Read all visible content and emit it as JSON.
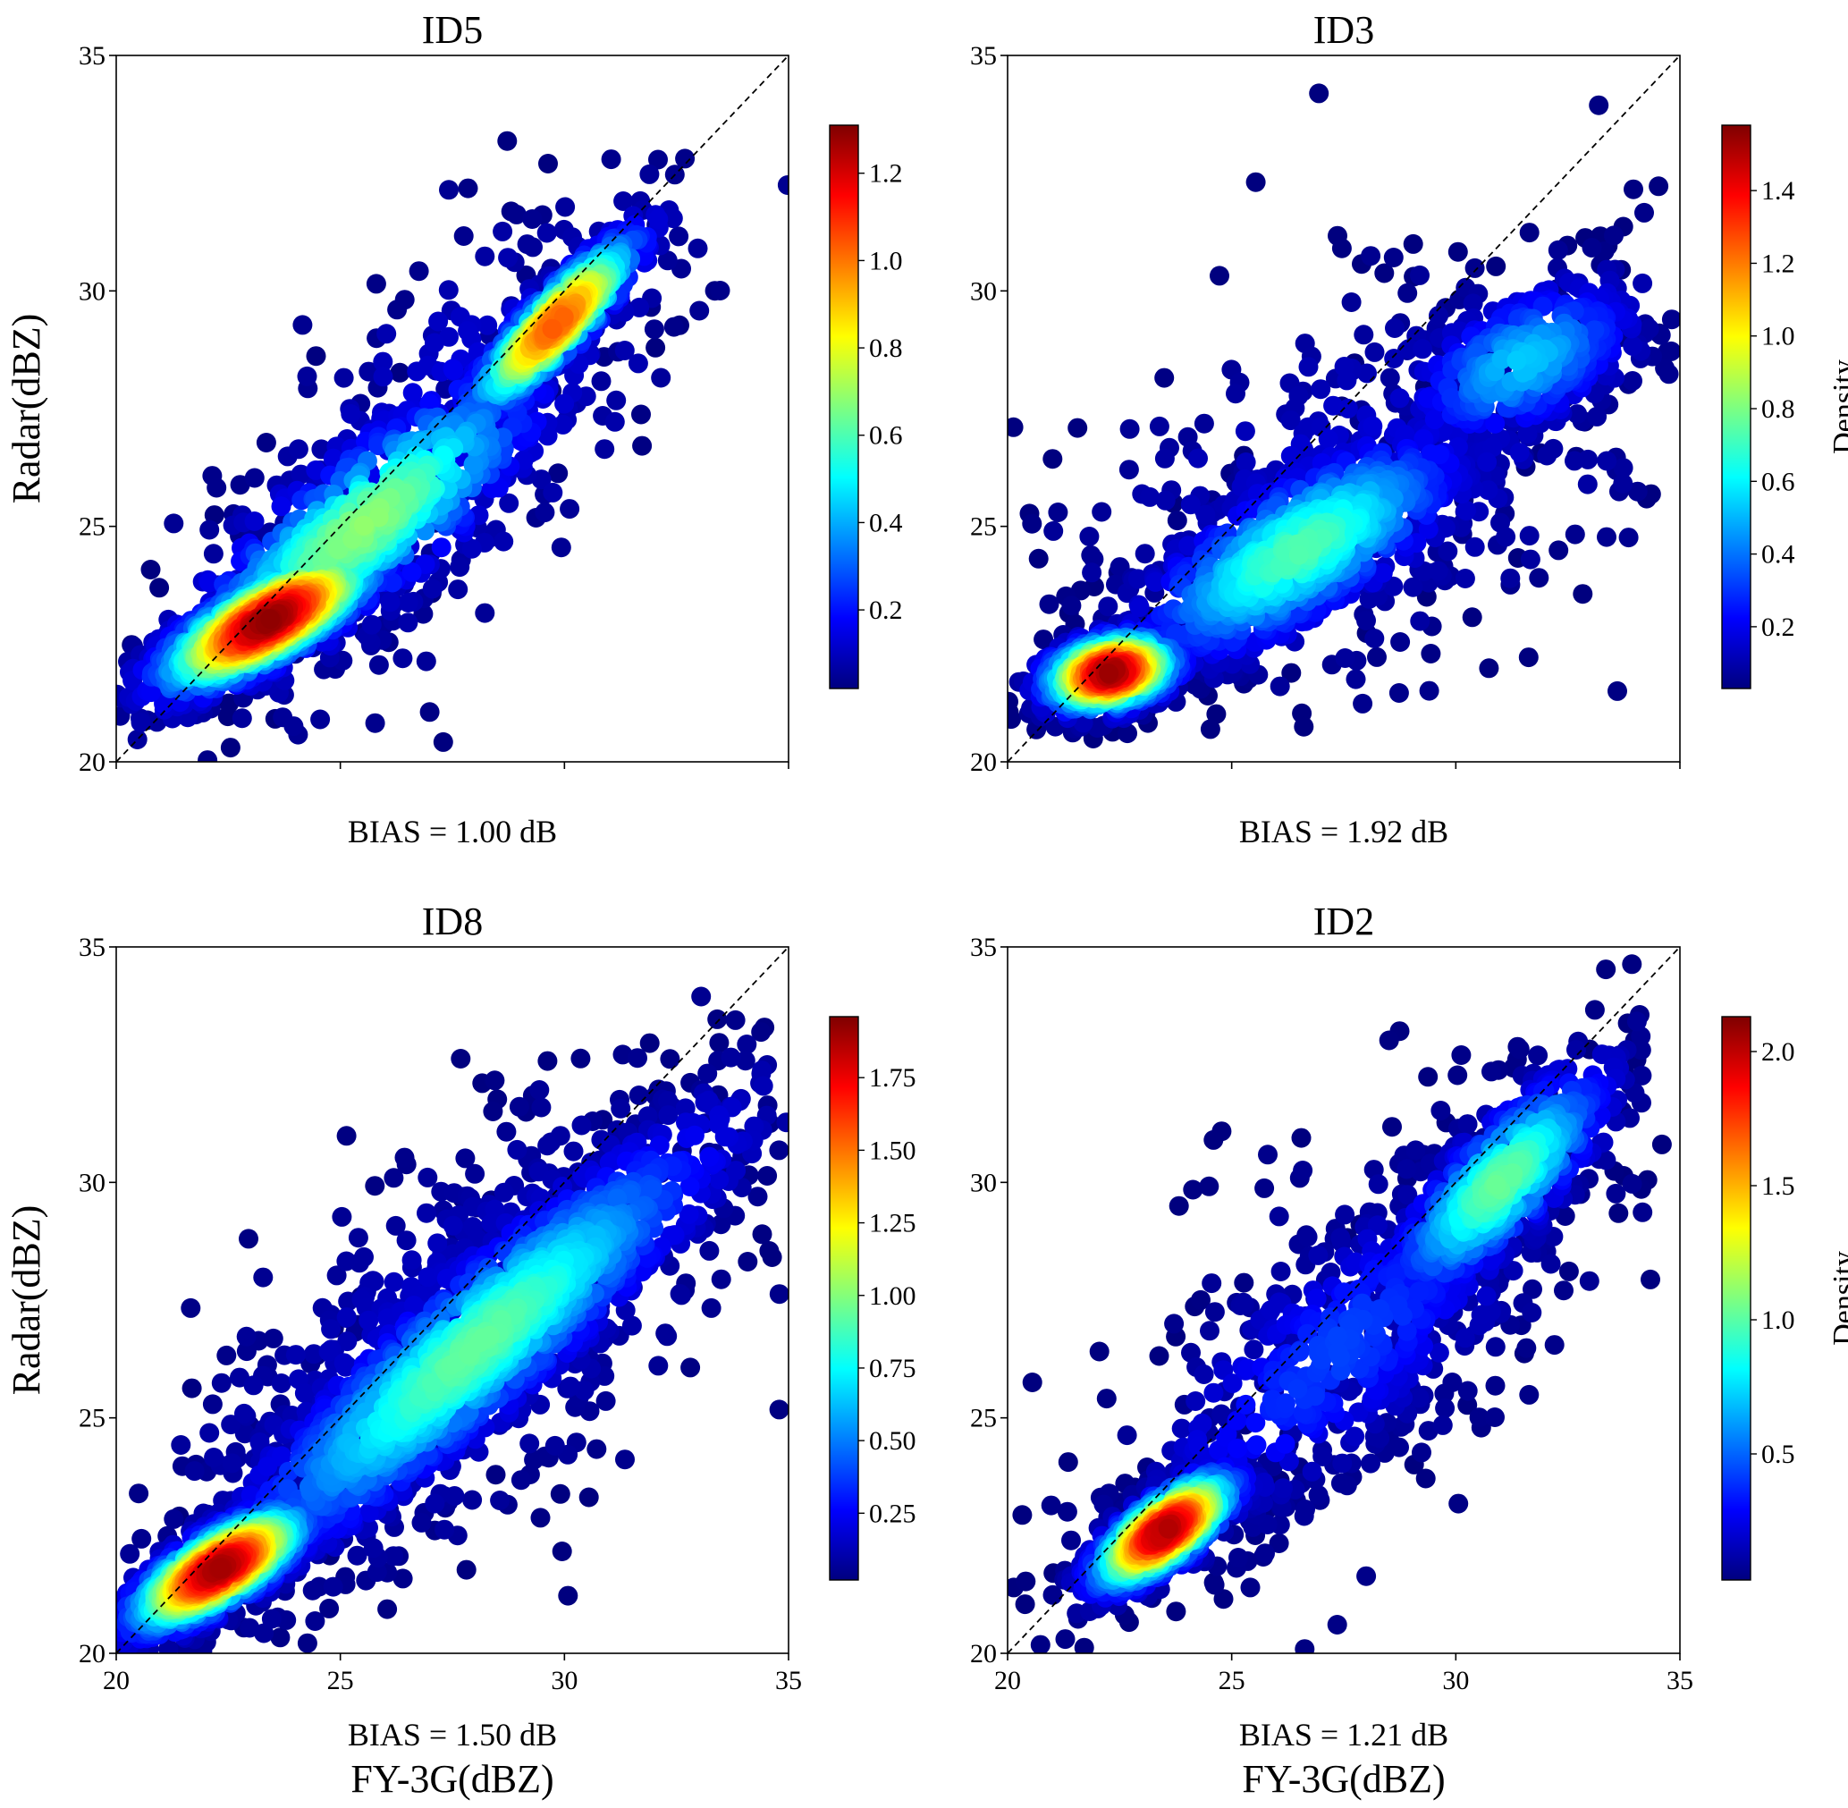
{
  "figure": {
    "xlabel": "FY-3G(dBZ)",
    "ylabel": "Radar(dBZ)",
    "colorbar_label": "Density",
    "colormap": [
      "#00007f",
      "#0000ff",
      "#007fff",
      "#00ffff",
      "#7fff7f",
      "#ffff00",
      "#ff7f00",
      "#ff0000",
      "#7f0000"
    ]
  },
  "chart_data": [
    {
      "type": "scatter",
      "title": "ID5",
      "bias_text": "BIAS = 1.00 dB",
      "xlim": [
        20,
        35
      ],
      "ylim": [
        20,
        35
      ],
      "xticks": [
        "20",
        "25",
        "30",
        "35"
      ],
      "yticks": [
        "20",
        "25",
        "30",
        "35"
      ],
      "show_xticklabels": false,
      "show_ylabel": true,
      "show_xlabel": false,
      "show_colorbar_label": false,
      "colorbar": {
        "min": 0.02,
        "max": 1.31,
        "ticks": [
          0.2,
          0.4,
          0.6,
          0.8,
          1.0,
          1.2
        ],
        "tick_labels": [
          "0.2",
          "0.4",
          "0.6",
          "0.8",
          "1.0",
          "1.2"
        ]
      },
      "reference_line": "y = x",
      "clusters": [
        {
          "cx": 23.4,
          "cy": 23.0,
          "major": 2.9,
          "minor": 0.9,
          "angle_deg": 28,
          "n": 1300,
          "density": 1.25
        },
        {
          "cx": 29.8,
          "cy": 29.3,
          "major": 2.8,
          "minor": 0.7,
          "angle_deg": 45,
          "n": 650,
          "density": 1.0
        },
        {
          "cx": 25.5,
          "cy": 25.0,
          "major": 5.5,
          "minor": 1.6,
          "angle_deg": 38,
          "n": 700,
          "density": 0.65
        },
        {
          "cx": 27.5,
          "cy": 27.0,
          "major": 7.0,
          "minor": 3.0,
          "angle_deg": 45,
          "n": 350,
          "density": 0.15
        }
      ]
    },
    {
      "type": "scatter",
      "title": "ID3",
      "bias_text": "BIAS = 1.92 dB",
      "xlim": [
        20,
        35
      ],
      "ylim": [
        20,
        35
      ],
      "xticks": [
        "20",
        "25",
        "30",
        "35"
      ],
      "yticks": [
        "20",
        "25",
        "30",
        "35"
      ],
      "show_xticklabels": false,
      "show_ylabel": false,
      "show_xlabel": false,
      "show_colorbar_label": true,
      "colorbar": {
        "min": 0.03,
        "max": 1.58,
        "ticks": [
          0.2,
          0.4,
          0.6,
          0.8,
          1.0,
          1.2,
          1.4
        ],
        "tick_labels": [
          "0.2",
          "0.4",
          "0.6",
          "0.8",
          "1.0",
          "1.2",
          "1.4"
        ]
      },
      "reference_line": "y = x",
      "clusters": [
        {
          "cx": 22.3,
          "cy": 21.9,
          "major": 1.6,
          "minor": 0.8,
          "angle_deg": 12,
          "n": 700,
          "density": 1.5
        },
        {
          "cx": 26.5,
          "cy": 24.5,
          "major": 4.5,
          "minor": 1.6,
          "angle_deg": 30,
          "n": 800,
          "density": 0.7
        },
        {
          "cx": 31.5,
          "cy": 28.5,
          "major": 3.0,
          "minor": 1.5,
          "angle_deg": 25,
          "n": 350,
          "density": 0.5
        },
        {
          "cx": 28.0,
          "cy": 26.0,
          "major": 8.0,
          "minor": 4.0,
          "angle_deg": 25,
          "n": 450,
          "density": 0.15
        }
      ]
    },
    {
      "type": "scatter",
      "title": "ID8",
      "bias_text": "BIAS = 1.50 dB",
      "xlim": [
        20,
        35
      ],
      "ylim": [
        20,
        35
      ],
      "xticks": [
        "20",
        "25",
        "30",
        "35"
      ],
      "yticks": [
        "20",
        "25",
        "30",
        "35"
      ],
      "show_xticklabels": true,
      "show_ylabel": true,
      "show_xlabel": true,
      "show_colorbar_label": false,
      "colorbar": {
        "min": 0.02,
        "max": 1.96,
        "ticks": [
          0.25,
          0.5,
          0.75,
          1.0,
          1.25,
          1.5,
          1.75
        ],
        "tick_labels": [
          "0.25",
          "0.50",
          "0.75",
          "1.00",
          "1.25",
          "1.50",
          "1.75"
        ]
      },
      "reference_line": "y = x",
      "clusters": [
        {
          "cx": 22.3,
          "cy": 21.8,
          "major": 2.4,
          "minor": 0.8,
          "angle_deg": 30,
          "n": 1200,
          "density": 1.85
        },
        {
          "cx": 28.0,
          "cy": 26.5,
          "major": 7.5,
          "minor": 1.6,
          "angle_deg": 40,
          "n": 1400,
          "density": 0.9
        },
        {
          "cx": 27.5,
          "cy": 26.5,
          "major": 8.5,
          "minor": 3.5,
          "angle_deg": 40,
          "n": 700,
          "density": 0.18
        }
      ]
    },
    {
      "type": "scatter",
      "title": "ID2",
      "bias_text": "BIAS = 1.21 dB",
      "xlim": [
        20,
        35
      ],
      "ylim": [
        20,
        35
      ],
      "xticks": [
        "20",
        "25",
        "30",
        "35"
      ],
      "yticks": [
        "20",
        "25",
        "30",
        "35"
      ],
      "show_xticklabels": true,
      "show_ylabel": false,
      "show_xlabel": true,
      "show_colorbar_label": true,
      "colorbar": {
        "min": 0.03,
        "max": 2.13,
        "ticks": [
          0.5,
          1.0,
          1.5,
          2.0
        ],
        "tick_labels": [
          "0.5",
          "1.0",
          "1.5",
          "2.0"
        ]
      },
      "reference_line": "y = x",
      "clusters": [
        {
          "cx": 23.5,
          "cy": 22.6,
          "major": 2.0,
          "minor": 0.75,
          "angle_deg": 35,
          "n": 800,
          "density": 2.0
        },
        {
          "cx": 31.0,
          "cy": 30.0,
          "major": 3.5,
          "minor": 1.2,
          "angle_deg": 45,
          "n": 550,
          "density": 1.0
        },
        {
          "cx": 27.5,
          "cy": 26.5,
          "major": 6.5,
          "minor": 2.2,
          "angle_deg": 40,
          "n": 450,
          "density": 0.4
        },
        {
          "cx": 28.0,
          "cy": 27.0,
          "major": 8.0,
          "minor": 4.0,
          "angle_deg": 40,
          "n": 300,
          "density": 0.12
        }
      ]
    }
  ]
}
